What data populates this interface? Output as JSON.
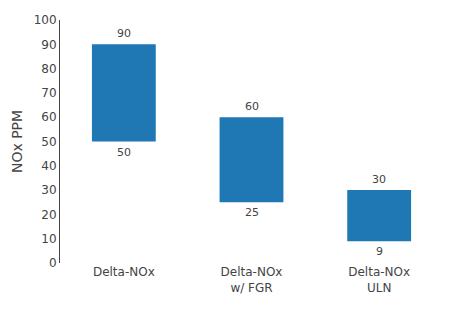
{
  "chart_data": {
    "type": "bar",
    "categories": [
      "Delta-NOx",
      "Delta-NOx\nw/ FGR",
      "Delta-NOx\nULN"
    ],
    "values": [
      90,
      60,
      30
    ],
    "bottoms": [
      50,
      25,
      9
    ],
    "ylabel": "NOx PPM",
    "ylim": [
      0,
      100
    ],
    "yticks": [
      0,
      10,
      20,
      30,
      40,
      50,
      60,
      70,
      80,
      90,
      100
    ],
    "data_labels": true,
    "grid": false
  }
}
